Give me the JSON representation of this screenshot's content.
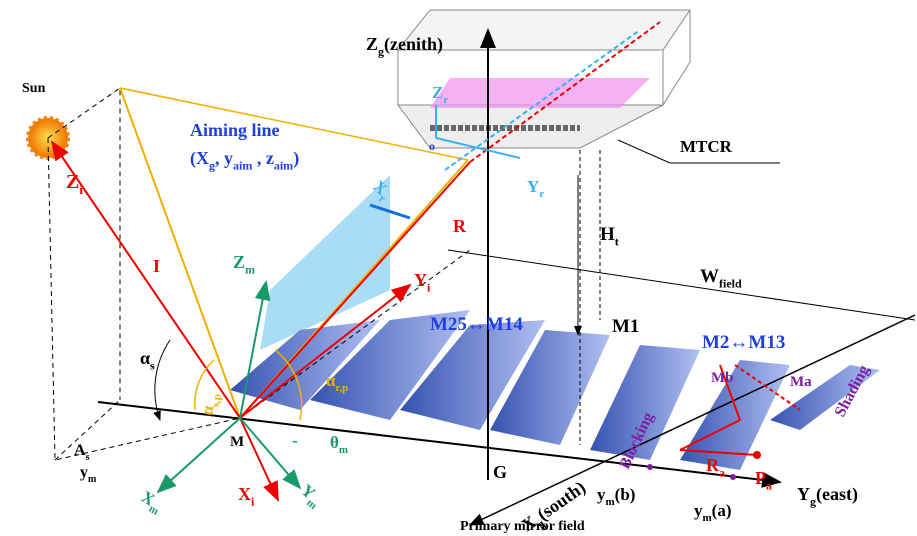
{
  "labels": [
    [
      "Sun"
    ],
    [
      "Aiming line"
    ],
    [
      "(X",
      {
        "sub": "g"
      },
      ", y",
      {
        "sub": "aim"
      },
      " , z",
      {
        "sub": "aim"
      },
      ")"
    ],
    [
      "Z",
      {
        "sub": "g"
      },
      "(zenith)"
    ],
    [
      "Z",
      {
        "sub": "r"
      }
    ],
    [
      "o"
    ],
    [
      "Y",
      {
        "sub": "r"
      }
    ],
    [
      "X",
      {
        "sub": "r"
      }
    ],
    [
      "MTCR"
    ],
    [
      "Z",
      {
        "sub": "i"
      }
    ],
    [
      "I"
    ],
    [
      "R"
    ],
    [
      "H",
      {
        "sub": "t"
      }
    ],
    [
      "W",
      {
        "sub": "field"
      }
    ],
    [
      "Z",
      {
        "sub": "m"
      }
    ],
    [
      "Y",
      {
        "sub": "i"
      }
    ],
    [
      "M25↔M14"
    ],
    [
      "M1"
    ],
    [
      "M2↔M13"
    ],
    [
      "α",
      {
        "sub": "s"
      }
    ],
    [
      "α",
      {
        "sub": "s,p"
      }
    ],
    [
      "α",
      {
        "sub": "r,p"
      }
    ],
    [
      "A",
      {
        "sub": "s"
      }
    ],
    [
      "M"
    ],
    [
      "y",
      {
        "sub": "m"
      }
    ],
    [
      "X",
      {
        "sub": "m"
      }
    ],
    [
      "X",
      {
        "sub": "i"
      }
    ],
    [
      "Y",
      {
        "sub": "m"
      }
    ],
    [
      "θ",
      {
        "sub": "m"
      }
    ],
    [
      "-"
    ],
    [
      "Blocking"
    ],
    [
      "Shading"
    ],
    [
      "Mb"
    ],
    [
      "Ma"
    ],
    [
      "R",
      {
        "sub": "a"
      }
    ],
    [
      "P",
      {
        "sub": "a"
      }
    ],
    [
      "G"
    ],
    [
      "X",
      {
        "sub": "g"
      },
      "(south)"
    ],
    [
      "y",
      {
        "sub": "m"
      },
      "(b)"
    ],
    [
      "y",
      {
        "sub": "m"
      },
      "(a)"
    ],
    [
      "Y",
      {
        "sub": "g"
      },
      "(east)"
    ],
    [
      "Primary mirror field"
    ]
  ]
}
